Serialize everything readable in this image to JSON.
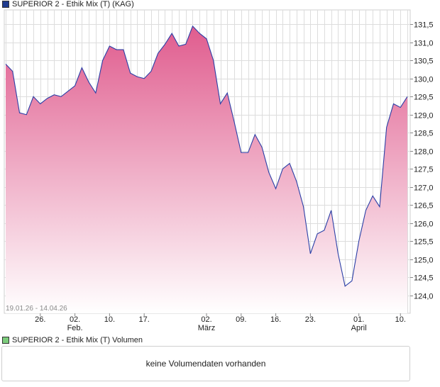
{
  "price_legend": {
    "label": "SUPERIOR 2 - Ethik Mix (T) (KAG)",
    "swatch_color": "#1f3c8f"
  },
  "volume_legend": {
    "label": "SUPERIOR 2 - Ethik Mix (T) Volumen",
    "swatch_color": "#7ccc7c"
  },
  "volume_panel": {
    "message": "keine Volumendaten vorhanden"
  },
  "chart_data": {
    "type": "area",
    "date_range_label": "19.01.26 - 14.04.26",
    "ylim": [
      123.5,
      131.9
    ],
    "y_ticks": [
      "124,0",
      "124,5",
      "125,0",
      "125,5",
      "126,0",
      "126,5",
      "127,0",
      "127,5",
      "128,0",
      "128,5",
      "129,0",
      "129,5",
      "130,0",
      "130,5",
      "131,0",
      "131,5"
    ],
    "y_tick_values": [
      124.0,
      124.5,
      125.0,
      125.5,
      126.0,
      126.5,
      127.0,
      127.5,
      128.0,
      128.5,
      129.0,
      129.5,
      130.0,
      130.5,
      131.0,
      131.5
    ],
    "x_ticks": [
      {
        "label": "26.",
        "sublabel": "",
        "index": 5
      },
      {
        "label": "02.",
        "sublabel": "Feb.",
        "index": 10
      },
      {
        "label": "10.",
        "sublabel": "",
        "index": 15
      },
      {
        "label": "17.",
        "sublabel": "",
        "index": 20
      },
      {
        "label": "02.",
        "sublabel": "März",
        "index": 29
      },
      {
        "label": "09.",
        "sublabel": "",
        "index": 34
      },
      {
        "label": "16.",
        "sublabel": "",
        "index": 39
      },
      {
        "label": "23.",
        "sublabel": "",
        "index": 44
      },
      {
        "label": "01.",
        "sublabel": "April",
        "index": 51
      },
      {
        "label": "10.",
        "sublabel": "",
        "index": 57
      }
    ],
    "grid": true,
    "colors": {
      "line": "#2b3fa6",
      "fill_top": "#e05c8e",
      "fill_bottom": "#ffffff",
      "grid": "#dddddd"
    },
    "series": [
      {
        "values": [
          130.4,
          130.2,
          129.05,
          129.0,
          129.5,
          129.3,
          129.45,
          129.55,
          129.5,
          129.65,
          129.8,
          130.3,
          129.9,
          129.6,
          130.5,
          130.9,
          130.8,
          130.8,
          130.15,
          130.05,
          130.0,
          130.2,
          130.7,
          130.95,
          131.25,
          130.9,
          130.95,
          131.45,
          131.25,
          131.1,
          130.5,
          129.3,
          129.6,
          128.8,
          127.95,
          127.95,
          128.45,
          128.1,
          127.4,
          126.95,
          127.5,
          127.65,
          127.15,
          126.45,
          125.15,
          125.7,
          125.8,
          126.35,
          125.15,
          124.25,
          124.4,
          125.5,
          126.35,
          126.75,
          126.45,
          128.65,
          129.3,
          129.2,
          129.5
        ]
      }
    ]
  }
}
